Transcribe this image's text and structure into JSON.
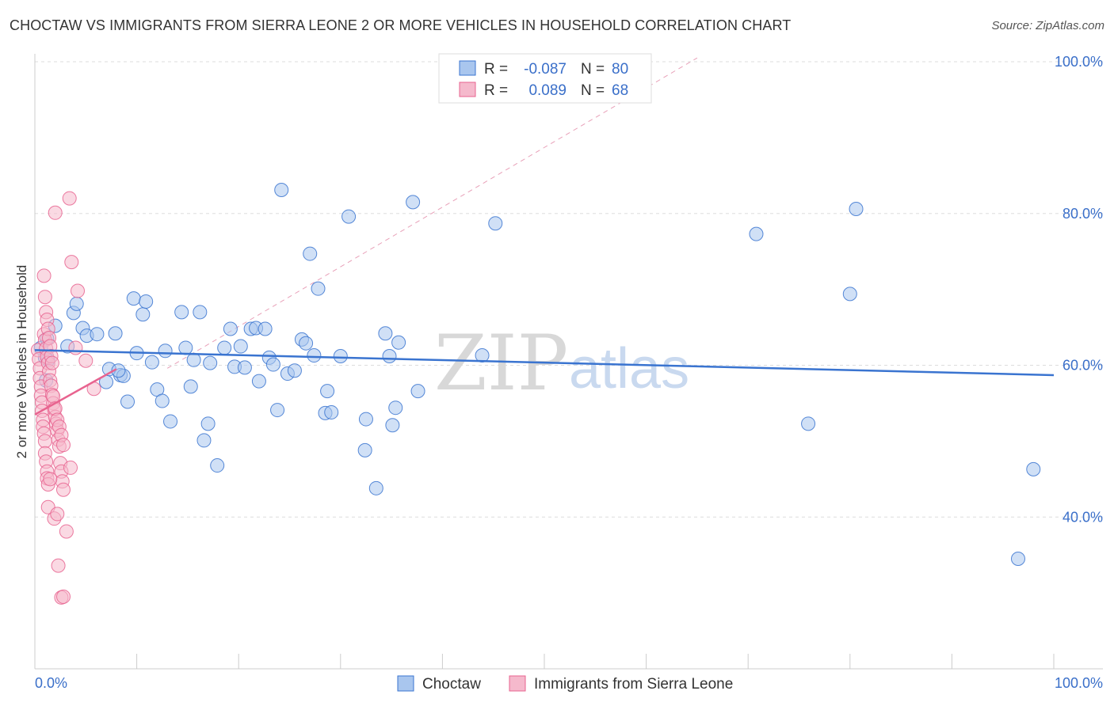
{
  "title": "CHOCTAW VS IMMIGRANTS FROM SIERRA LEONE 2 OR MORE VEHICLES IN HOUSEHOLD CORRELATION CHART",
  "source": "Source: ZipAtlas.com",
  "watermark": {
    "part1": "ZIP",
    "part2": "atlas"
  },
  "colors": {
    "blue": "#3a74d0",
    "blue_fill": "#a9c6ee",
    "pink": "#e8638f",
    "pink_fill": "#f5b9cc",
    "tick_text": "#3a6fc9",
    "grid": "#dddddd"
  },
  "legend": {
    "rows": [
      {
        "r_label": "R =",
        "r_value": "-0.087",
        "n_label": "N =",
        "n_value": "80"
      },
      {
        "r_label": "R =",
        "r_value": "0.089",
        "n_label": "N =",
        "n_value": "68"
      }
    ]
  },
  "bottom_legend": [
    "Choctaw",
    "Immigrants from Sierra Leone"
  ],
  "chart_data": {
    "type": "scatter",
    "xlabel": "",
    "ylabel": "2 or more Vehicles in Household",
    "xlim": [
      0,
      100
    ],
    "ylim": [
      20,
      100
    ],
    "x_tick_labels": [
      "0.0%",
      "100.0%"
    ],
    "y_ticks": [
      40,
      60,
      80,
      100
    ],
    "y_tick_labels": [
      "40.0%",
      "60.0%",
      "80.0%",
      "100.0%"
    ],
    "grid": true,
    "legend_position": "top-center",
    "series": [
      {
        "name": "Choctaw",
        "color": "#3a74d0",
        "trend": {
          "x": [
            0,
            100
          ],
          "y": [
            62.0,
            58.7
          ]
        },
        "points": [
          [
            0.6,
            62.3
          ],
          [
            1.1,
            58.0
          ],
          [
            1.2,
            63.5
          ],
          [
            1.3,
            60.7
          ],
          [
            2.0,
            65.2
          ],
          [
            3.8,
            66.9
          ],
          [
            4.1,
            68.1
          ],
          [
            4.7,
            64.9
          ],
          [
            5.1,
            63.9
          ],
          [
            6.1,
            64.1
          ],
          [
            7.0,
            57.8
          ],
          [
            7.3,
            59.5
          ],
          [
            7.9,
            64.2
          ],
          [
            8.4,
            58.7
          ],
          [
            8.7,
            58.6
          ],
          [
            9.1,
            55.2
          ],
          [
            9.7,
            68.8
          ],
          [
            10.0,
            61.6
          ],
          [
            10.6,
            66.7
          ],
          [
            10.9,
            68.4
          ],
          [
            11.5,
            60.4
          ],
          [
            12.0,
            56.8
          ],
          [
            12.5,
            55.3
          ],
          [
            12.8,
            61.9
          ],
          [
            13.3,
            52.6
          ],
          [
            14.4,
            67.0
          ],
          [
            14.8,
            62.3
          ],
          [
            15.3,
            57.2
          ],
          [
            15.6,
            60.7
          ],
          [
            16.2,
            67.0
          ],
          [
            16.6,
            50.1
          ],
          [
            17.0,
            52.3
          ],
          [
            17.2,
            60.3
          ],
          [
            17.9,
            46.8
          ],
          [
            18.6,
            62.3
          ],
          [
            19.2,
            64.8
          ],
          [
            19.6,
            59.8
          ],
          [
            20.2,
            62.5
          ],
          [
            20.6,
            59.7
          ],
          [
            21.2,
            64.8
          ],
          [
            21.7,
            64.9
          ],
          [
            22.0,
            57.9
          ],
          [
            22.6,
            64.8
          ],
          [
            23.0,
            61.0
          ],
          [
            23.4,
            60.1
          ],
          [
            23.8,
            54.1
          ],
          [
            24.2,
            83.1
          ],
          [
            24.8,
            58.9
          ],
          [
            25.5,
            59.3
          ],
          [
            26.2,
            63.4
          ],
          [
            26.6,
            62.9
          ],
          [
            27.0,
            74.7
          ],
          [
            27.4,
            61.3
          ],
          [
            27.8,
            70.1
          ],
          [
            28.5,
            53.7
          ],
          [
            28.7,
            56.6
          ],
          [
            29.1,
            53.8
          ],
          [
            30.0,
            61.2
          ],
          [
            30.8,
            79.6
          ],
          [
            32.4,
            48.8
          ],
          [
            32.5,
            52.9
          ],
          [
            33.5,
            43.8
          ],
          [
            34.4,
            64.2
          ],
          [
            34.8,
            61.2
          ],
          [
            35.1,
            52.1
          ],
          [
            35.4,
            54.4
          ],
          [
            35.7,
            63.0
          ],
          [
            37.1,
            81.5
          ],
          [
            37.6,
            56.6
          ],
          [
            43.9,
            61.3
          ],
          [
            45.2,
            78.7
          ],
          [
            70.8,
            77.3
          ],
          [
            75.9,
            52.3
          ],
          [
            80.0,
            69.4
          ],
          [
            80.6,
            80.6
          ],
          [
            96.5,
            34.5
          ],
          [
            98.0,
            46.3
          ],
          [
            8.2,
            59.3
          ],
          [
            1.0,
            61.0
          ],
          [
            3.2,
            62.5
          ]
        ]
      },
      {
        "name": "Immigrants from Sierra Leone",
        "color": "#e8638f",
        "trend": {
          "x": [
            0,
            8
          ],
          "y": [
            53.5,
            59.5
          ]
        },
        "points": [
          [
            0.3,
            62.0
          ],
          [
            0.4,
            60.8
          ],
          [
            0.5,
            59.6
          ],
          [
            0.5,
            58.3
          ],
          [
            0.6,
            57.2
          ],
          [
            0.6,
            56.0
          ],
          [
            0.7,
            55.1
          ],
          [
            0.7,
            54.0
          ],
          [
            0.8,
            52.8
          ],
          [
            0.8,
            51.9
          ],
          [
            0.9,
            51.0
          ],
          [
            1.0,
            50.0
          ],
          [
            1.0,
            48.4
          ],
          [
            1.1,
            47.3
          ],
          [
            1.2,
            46.0
          ],
          [
            1.2,
            45.1
          ],
          [
            1.3,
            44.3
          ],
          [
            1.3,
            41.3
          ],
          [
            0.9,
            64.1
          ],
          [
            1.0,
            63.3
          ],
          [
            1.1,
            62.2
          ],
          [
            1.2,
            61.1
          ],
          [
            1.3,
            60.3
          ],
          [
            1.4,
            59.2
          ],
          [
            1.5,
            58.0
          ],
          [
            1.6,
            57.3
          ],
          [
            1.7,
            56.1
          ],
          [
            1.8,
            55.0
          ],
          [
            1.9,
            54.2
          ],
          [
            2.0,
            53.2
          ],
          [
            2.1,
            52.3
          ],
          [
            2.2,
            51.4
          ],
          [
            2.3,
            50.2
          ],
          [
            2.4,
            49.3
          ],
          [
            2.5,
            47.1
          ],
          [
            2.6,
            46.0
          ],
          [
            2.7,
            44.7
          ],
          [
            2.8,
            43.6
          ],
          [
            0.9,
            71.8
          ],
          [
            1.0,
            69.0
          ],
          [
            1.1,
            67.0
          ],
          [
            1.2,
            66.0
          ],
          [
            1.3,
            64.8
          ],
          [
            1.4,
            63.6
          ],
          [
            1.5,
            62.5
          ],
          [
            1.6,
            61.2
          ],
          [
            1.7,
            60.3
          ],
          [
            1.8,
            55.9
          ],
          [
            2.0,
            54.3
          ],
          [
            2.2,
            52.8
          ],
          [
            2.4,
            51.9
          ],
          [
            2.6,
            50.8
          ],
          [
            2.8,
            49.5
          ],
          [
            2.0,
            80.1
          ],
          [
            3.4,
            82.0
          ],
          [
            3.6,
            73.6
          ],
          [
            4.2,
            69.8
          ],
          [
            4.0,
            62.3
          ],
          [
            5.0,
            60.6
          ],
          [
            5.8,
            56.9
          ],
          [
            3.5,
            46.5
          ],
          [
            1.9,
            39.8
          ],
          [
            2.2,
            40.4
          ],
          [
            3.1,
            38.1
          ],
          [
            2.3,
            33.6
          ],
          [
            2.6,
            29.4
          ],
          [
            2.8,
            29.5
          ],
          [
            1.5,
            45.0
          ]
        ]
      }
    ]
  }
}
